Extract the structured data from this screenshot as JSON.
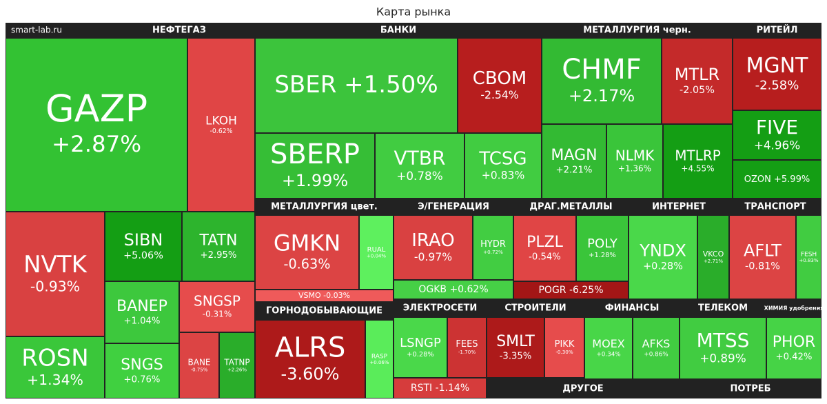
{
  "title": "Карта рынка",
  "source": "smart-lab.ru",
  "sectors": [
    {
      "name": "НЕФТЕГАЗ",
      "tiles": [
        {
          "ticker": "GAZP",
          "change": "+2.87%",
          "color": "#33c233"
        },
        {
          "ticker": "LKOH",
          "change": "-0.62%",
          "color": "#e04545"
        },
        {
          "ticker": "NVTK",
          "change": "-0.93%",
          "color": "#d94141"
        },
        {
          "ticker": "ROSN",
          "change": "+1.34%",
          "color": "#3ac73a"
        },
        {
          "ticker": "SIBN",
          "change": "+5.06%",
          "color": "#149e14"
        },
        {
          "ticker": "TATN",
          "change": "+2.95%",
          "color": "#2db42d"
        },
        {
          "ticker": "BANEP",
          "change": "+1.04%",
          "color": "#3dc83d"
        },
        {
          "ticker": "SNGS",
          "change": "+0.76%",
          "color": "#40d040"
        },
        {
          "ticker": "SNGSP",
          "change": "-0.31%",
          "color": "#e64c4c"
        },
        {
          "ticker": "BANE",
          "change": "-0.75%",
          "color": "#dc4444"
        },
        {
          "ticker": "TATNP",
          "change": "+2.26%",
          "color": "#2aad2a"
        }
      ]
    },
    {
      "name": "БАНКИ",
      "tiles": [
        {
          "ticker": "SBER",
          "change": "+1.50%",
          "color": "#3cc43c"
        },
        {
          "ticker": "CBOM",
          "change": "-2.54%",
          "color": "#b71e1e"
        },
        {
          "ticker": "SBERP",
          "change": "+1.99%",
          "color": "#36be36"
        },
        {
          "ticker": "VTBR",
          "change": "+0.78%",
          "color": "#41cc41"
        },
        {
          "ticker": "TCSG",
          "change": "+0.83%",
          "color": "#41cc41"
        }
      ]
    },
    {
      "name": "МЕТАЛЛУРГИЯ черн.",
      "tiles": [
        {
          "ticker": "CHMF",
          "change": "+2.17%",
          "color": "#33ba33"
        },
        {
          "ticker": "MTLR",
          "change": "-2.05%",
          "color": "#c42a2a"
        },
        {
          "ticker": "MAGN",
          "change": "+2.21%",
          "color": "#33ba33"
        },
        {
          "ticker": "NLMK",
          "change": "+1.36%",
          "color": "#3ac53a"
        },
        {
          "ticker": "MTLRP",
          "change": "+4.55%",
          "color": "#149e14"
        }
      ]
    },
    {
      "name": "РИТЕЙЛ",
      "tiles": [
        {
          "ticker": "MGNT",
          "change": "-2.58%",
          "color": "#b71e1e"
        },
        {
          "ticker": "FIVE",
          "change": "+4.96%",
          "color": "#149e14"
        },
        {
          "ticker": "OZON",
          "change": "+5.99%",
          "color": "#149e14"
        }
      ]
    },
    {
      "name": "МЕТАЛЛУРГИЯ цвет.",
      "tiles": [
        {
          "ticker": "GMKN",
          "change": "-0.63%",
          "color": "#dc4444"
        },
        {
          "ticker": "RUAL",
          "change": "+0.04%",
          "color": "#5ef05e"
        },
        {
          "ticker": "VSMO",
          "change": "-0.03%",
          "color": "#ef5a5a"
        }
      ]
    },
    {
      "name": "Э/ГЕНЕРАЦИЯ",
      "tiles": [
        {
          "ticker": "IRAO",
          "change": "-0.97%",
          "color": "#d94141"
        },
        {
          "ticker": "HYDR",
          "change": "+0.72%",
          "color": "#42cd42"
        },
        {
          "ticker": "OGKB",
          "change": "+0.62%",
          "color": "#46d046"
        }
      ]
    },
    {
      "name": "ДРАГ.МЕТАЛЛЫ",
      "tiles": [
        {
          "ticker": "PLZL",
          "change": "-0.54%",
          "color": "#e04545"
        },
        {
          "ticker": "POLY",
          "change": "+1.28%",
          "color": "#3ac53a"
        },
        {
          "ticker": "POGR",
          "change": "-6.25%",
          "color": "#a31616"
        }
      ]
    },
    {
      "name": "ИНТЕРНЕТ",
      "tiles": [
        {
          "ticker": "YNDX",
          "change": "+0.28%",
          "color": "#4ad84a"
        },
        {
          "ticker": "VKCO",
          "change": "+2.71%",
          "color": "#2aad2a"
        }
      ]
    },
    {
      "name": "ТРАНСПОРТ",
      "tiles": [
        {
          "ticker": "AFLT",
          "change": "-0.81%",
          "color": "#dc4444"
        },
        {
          "ticker": "FESH",
          "change": "+0.83%",
          "color": "#41cc41"
        }
      ]
    },
    {
      "name": "ГОРНОДОБЫВАЮЩИЕ",
      "tiles": [
        {
          "ticker": "ALRS",
          "change": "-3.60%",
          "color": "#ad1a1a"
        },
        {
          "ticker": "RASP",
          "change": "+0.06%",
          "color": "#5aec5a"
        }
      ]
    },
    {
      "name": "ЭЛЕКТРОСЕТИ",
      "tiles": [
        {
          "ticker": "LSNGP",
          "change": "+0.28%",
          "color": "#4ad84a"
        },
        {
          "ticker": "FEES",
          "change": "-1.70%",
          "color": "#cc3333"
        },
        {
          "ticker": "RSTI",
          "change": "-1.14%",
          "color": "#d63c3c"
        }
      ]
    },
    {
      "name": "СТРОИТЕЛИ",
      "tiles": [
        {
          "ticker": "SMLT",
          "change": "-3.35%",
          "color": "#ad1a1a"
        },
        {
          "ticker": "PIKK",
          "change": "-0.30%",
          "color": "#e64c4c"
        }
      ]
    },
    {
      "name": "ФИНАНСЫ",
      "tiles": [
        {
          "ticker": "MOEX",
          "change": "+0.34%",
          "color": "#48d648"
        },
        {
          "ticker": "AFKS",
          "change": "+0.86%",
          "color": "#41cc41"
        }
      ]
    },
    {
      "name": "ТЕЛЕКОМ",
      "tiles": [
        {
          "ticker": "MTSS",
          "change": "+0.89%",
          "color": "#41cc41"
        }
      ]
    },
    {
      "name": "ХИМИЯ удобрения",
      "tiles": [
        {
          "ticker": "PHOR",
          "change": "+0.42%",
          "color": "#46d346"
        }
      ]
    },
    {
      "name": "ДРУГОЕ",
      "tiles": []
    },
    {
      "name": "ПОТРЕБ",
      "tiles": []
    }
  ]
}
